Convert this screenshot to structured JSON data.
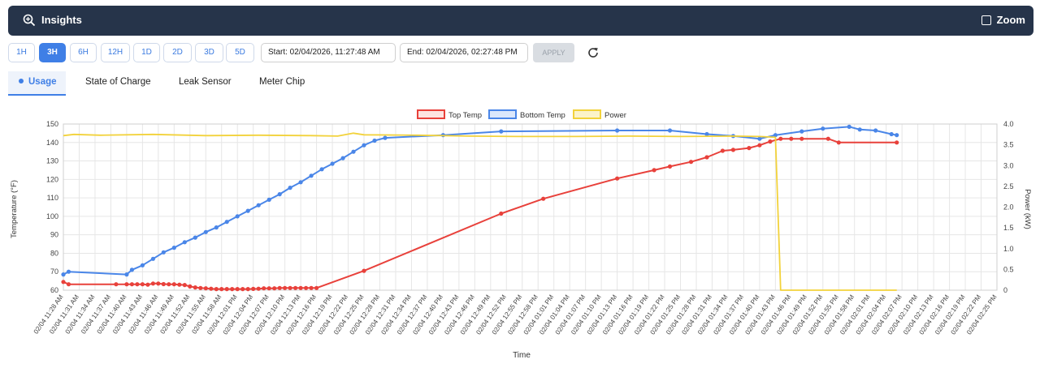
{
  "header": {
    "title": "Insights",
    "zoom_label": "Zoom"
  },
  "toolbar": {
    "ranges": [
      "1H",
      "3H",
      "6H",
      "12H",
      "1D",
      "2D",
      "3D",
      "5D"
    ],
    "active_range": "3H",
    "start_label": "Start: 02/04/2026, 11:27:48 AM",
    "end_label": "End: 02/04/2026, 02:27:48 PM",
    "apply_label": "APPLY"
  },
  "tabs": {
    "usage": "Usage",
    "state_of_charge": "State of Charge",
    "leak_sensor": "Leak Sensor",
    "meter_chip": "Meter Chip"
  },
  "colors": {
    "top_temp": "#e8413b",
    "bottom_temp": "#4a86e8",
    "power": "#f2d23b",
    "accent": "#3f7fe6",
    "header_bg": "#26344a"
  },
  "chart_data": {
    "type": "line",
    "xlabel": "Time",
    "ylabel_left": "Temperature (°F)",
    "ylabel_right": "Power (kW)",
    "ylim_left": [
      60,
      150
    ],
    "ylim_right": [
      0,
      4.0
    ],
    "yticks_left": [
      "60",
      "70",
      "80",
      "90",
      "100",
      "110",
      "120",
      "130",
      "140",
      "150"
    ],
    "yticks_right": [
      "0",
      "0.5",
      "1.0",
      "1.5",
      "2.0",
      "2.5",
      "3.0",
      "3.5",
      "4.0"
    ],
    "grid": true,
    "legend_position": "top-center",
    "categories": [
      "02/04 11:28 AM",
      "02/04 11:31 AM",
      "02/04 11:34 AM",
      "02/04 11:37 AM",
      "02/04 11:40 AM",
      "02/04 11:43 AM",
      "02/04 11:46 AM",
      "02/04 11:49 AM",
      "02/04 11:52 AM",
      "02/04 11:55 AM",
      "02/04 11:58 AM",
      "02/04 12:01 PM",
      "02/04 12:04 PM",
      "02/04 12:07 PM",
      "02/04 12:10 PM",
      "02/04 12:13 PM",
      "02/04 12:16 PM",
      "02/04 12:19 PM",
      "02/04 12:22 PM",
      "02/04 12:25 PM",
      "02/04 12:28 PM",
      "02/04 12:31 PM",
      "02/04 12:34 PM",
      "02/04 12:37 PM",
      "02/04 12:40 PM",
      "02/04 12:43 PM",
      "02/04 12:46 PM",
      "02/04 12:49 PM",
      "02/04 12:52 PM",
      "02/04 12:55 PM",
      "02/04 12:58 PM",
      "02/04 01:01 PM",
      "02/04 01:04 PM",
      "02/04 01:07 PM",
      "02/04 01:10 PM",
      "02/04 01:13 PM",
      "02/04 01:16 PM",
      "02/04 01:19 PM",
      "02/04 01:22 PM",
      "02/04 01:25 PM",
      "02/04 01:28 PM",
      "02/04 01:31 PM",
      "02/04 01:34 PM",
      "02/04 01:37 PM",
      "02/04 01:40 PM",
      "02/04 01:43 PM",
      "02/04 01:46 PM",
      "02/04 01:49 PM",
      "02/04 01:52 PM",
      "02/04 01:55 PM",
      "02/04 01:58 PM",
      "02/04 02:01 PM",
      "02/04 02:04 PM",
      "02/04 02:07 PM",
      "02/04 02:10 PM",
      "02/04 02:13 PM",
      "02/04 02:16 PM",
      "02/04 02:19 PM",
      "02/04 02:22 PM",
      "02/04 02:25 PM"
    ],
    "series": [
      {
        "name": "Top Temp",
        "axis": "left",
        "color": "#e8413b",
        "points": [
          [
            "11:28",
            64.5
          ],
          [
            "11:29",
            63.2
          ],
          [
            "11:38",
            63.2
          ],
          [
            "11:40",
            63.2
          ],
          [
            "11:41",
            63.2
          ],
          [
            "11:42",
            63.2
          ],
          [
            "11:43",
            63.2
          ],
          [
            "11:44",
            63.0
          ],
          [
            "11:45",
            63.6
          ],
          [
            "11:46",
            63.6
          ],
          [
            "11:47",
            63.3
          ],
          [
            "11:48",
            63.2
          ],
          [
            "11:49",
            63.2
          ],
          [
            "11:50",
            63.0
          ],
          [
            "11:51",
            62.8
          ],
          [
            "11:52",
            62.0
          ],
          [
            "11:53",
            61.5
          ],
          [
            "11:54",
            61.2
          ],
          [
            "11:55",
            61.0
          ],
          [
            "11:56",
            60.8
          ],
          [
            "11:57",
            60.6
          ],
          [
            "11:58",
            60.6
          ],
          [
            "11:59",
            60.6
          ],
          [
            "12:00",
            60.6
          ],
          [
            "12:01",
            60.6
          ],
          [
            "12:02",
            60.6
          ],
          [
            "12:03",
            60.6
          ],
          [
            "12:04",
            60.7
          ],
          [
            "12:05",
            60.8
          ],
          [
            "12:06",
            61.0
          ],
          [
            "12:07",
            61.0
          ],
          [
            "12:08",
            61.0
          ],
          [
            "12:09",
            61.2
          ],
          [
            "12:10",
            61.2
          ],
          [
            "12:11",
            61.2
          ],
          [
            "12:12",
            61.2
          ],
          [
            "12:13",
            61.2
          ],
          [
            "12:14",
            61.2
          ],
          [
            "12:15",
            61.2
          ],
          [
            "12:16",
            61.2
          ],
          [
            "12:25",
            70.5
          ],
          [
            "12:51",
            101.5
          ],
          [
            "12:59",
            109.5
          ],
          [
            "13:13",
            120.5
          ],
          [
            "13:20",
            125.0
          ],
          [
            "13:23",
            127.0
          ],
          [
            "13:27",
            129.5
          ],
          [
            "13:30",
            132.0
          ],
          [
            "13:33",
            135.5
          ],
          [
            "13:35",
            136.0
          ],
          [
            "13:38",
            137.0
          ],
          [
            "13:40",
            138.5
          ],
          [
            "13:42",
            140.5
          ],
          [
            "13:44",
            142.0
          ],
          [
            "13:46",
            142.0
          ],
          [
            "13:48",
            142.0
          ],
          [
            "13:53",
            142.0
          ],
          [
            "13:55",
            140.0
          ],
          [
            "14:06",
            140.0
          ]
        ]
      },
      {
        "name": "Bottom Temp",
        "axis": "left",
        "color": "#4a86e8",
        "points": [
          [
            "11:28",
            68.5
          ],
          [
            "11:29",
            70.0
          ],
          [
            "11:40",
            68.5
          ],
          [
            "11:41",
            71.0
          ],
          [
            "11:43",
            73.5
          ],
          [
            "11:45",
            77.0
          ],
          [
            "11:47",
            80.5
          ],
          [
            "11:49",
            83.0
          ],
          [
            "11:51",
            86.0
          ],
          [
            "11:53",
            88.5
          ],
          [
            "11:55",
            91.5
          ],
          [
            "11:57",
            94.0
          ],
          [
            "11:59",
            97.0
          ],
          [
            "12:01",
            100.0
          ],
          [
            "12:03",
            103.0
          ],
          [
            "12:05",
            106.0
          ],
          [
            "12:07",
            109.0
          ],
          [
            "12:09",
            112.0
          ],
          [
            "12:11",
            115.5
          ],
          [
            "12:13",
            118.5
          ],
          [
            "12:15",
            122.0
          ],
          [
            "12:17",
            125.5
          ],
          [
            "12:19",
            128.5
          ],
          [
            "12:21",
            131.5
          ],
          [
            "12:23",
            135.0
          ],
          [
            "12:25",
            138.5
          ],
          [
            "12:27",
            141.0
          ],
          [
            "12:29",
            142.5
          ],
          [
            "12:40",
            144.0
          ],
          [
            "12:51",
            146.0
          ],
          [
            "13:13",
            146.5
          ],
          [
            "13:23",
            146.5
          ],
          [
            "13:30",
            144.5
          ],
          [
            "13:35",
            143.5
          ],
          [
            "13:40",
            142.0
          ],
          [
            "13:43",
            144.0
          ],
          [
            "13:48",
            146.0
          ],
          [
            "13:52",
            147.5
          ],
          [
            "13:57",
            148.5
          ],
          [
            "13:59",
            147.0
          ],
          [
            "14:02",
            146.5
          ],
          [
            "14:05",
            144.5
          ],
          [
            "14:06",
            144.0
          ]
        ]
      },
      {
        "name": "Power",
        "axis": "right",
        "color": "#f2d23b",
        "points": [
          [
            "11:28",
            3.72
          ],
          [
            "11:30",
            3.75
          ],
          [
            "11:35",
            3.73
          ],
          [
            "11:45",
            3.75
          ],
          [
            "11:55",
            3.72
          ],
          [
            "12:05",
            3.73
          ],
          [
            "12:15",
            3.72
          ],
          [
            "12:20",
            3.71
          ],
          [
            "12:23",
            3.78
          ],
          [
            "12:25",
            3.74
          ],
          [
            "12:35",
            3.73
          ],
          [
            "12:45",
            3.71
          ],
          [
            "12:55",
            3.7
          ],
          [
            "13:05",
            3.7
          ],
          [
            "13:15",
            3.71
          ],
          [
            "13:25",
            3.7
          ],
          [
            "13:35",
            3.71
          ],
          [
            "13:40",
            3.7
          ],
          [
            "13:43",
            3.68
          ],
          [
            "13:44",
            0.0
          ],
          [
            "14:06",
            0.0
          ]
        ]
      }
    ]
  }
}
